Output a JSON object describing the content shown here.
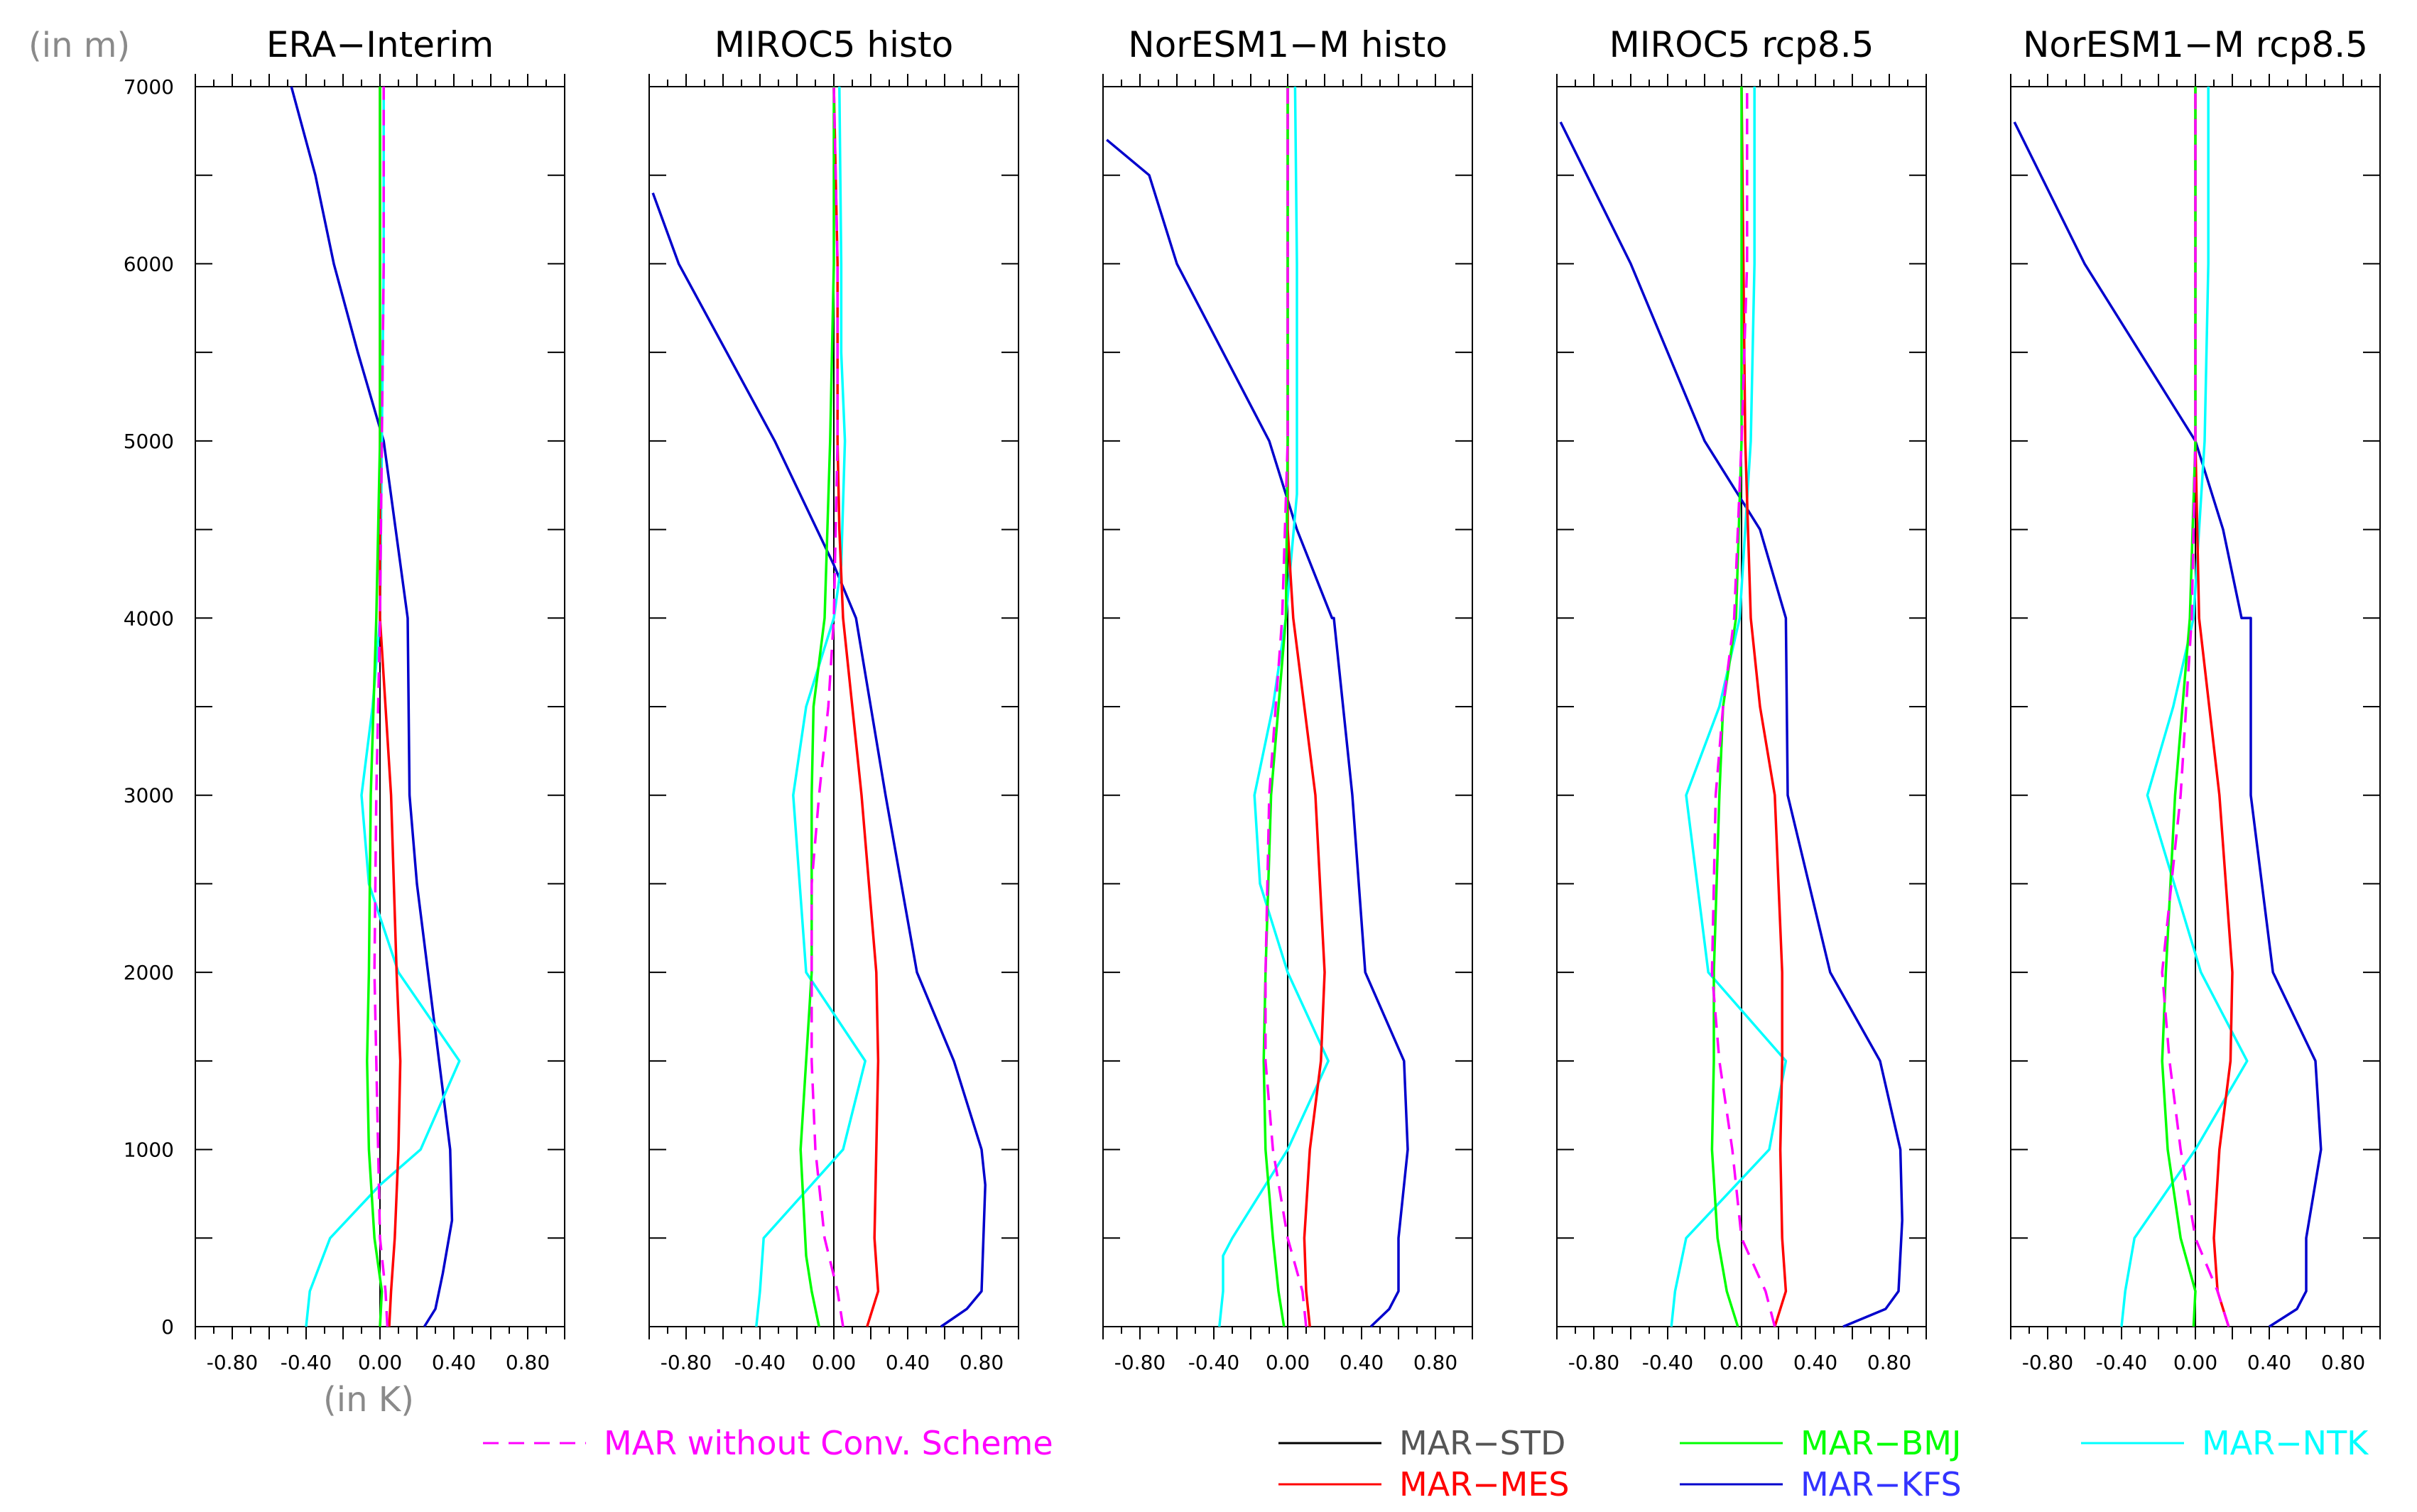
{
  "chart_data": {
    "type": "line",
    "y_unit_label": "(in m)",
    "x_unit_label": "(in K)",
    "ylim": [
      0,
      7000
    ],
    "xlim": [
      -1.0,
      1.0
    ],
    "y_ticks": [
      0,
      1000,
      2000,
      3000,
      4000,
      5000,
      6000,
      7000
    ],
    "y_tick_labels": [
      "0",
      "1000",
      "2000",
      "3000",
      "4000",
      "5000",
      "6000",
      "7000"
    ],
    "x_ticks": [
      -0.8,
      -0.4,
      0.0,
      0.4,
      0.8
    ],
    "x_tick_labels": [
      "-0.80",
      "-0.40",
      "0.00",
      "0.40",
      "0.80"
    ],
    "legend": [
      {
        "key": "nocv",
        "label": "MAR without Conv. Scheme",
        "color": "#ff00ff",
        "dashed": true
      },
      {
        "key": "std",
        "label": "MAR−STD",
        "color": "#000000",
        "text_color": "#555555",
        "dashed": false
      },
      {
        "key": "mes",
        "label": "MAR−MES",
        "color": "#ff0000",
        "dashed": false
      },
      {
        "key": "bmj",
        "label": "MAR−BMJ",
        "color": "#00ff00",
        "dashed": false
      },
      {
        "key": "kfs",
        "label": "MAR−KFS",
        "color": "#0000cc",
        "text_color": "#3333ff",
        "dashed": false
      },
      {
        "key": "ntk",
        "label": "MAR−NTK",
        "color": "#00ffff",
        "dashed": false
      }
    ],
    "panels": [
      {
        "title": "ERA−Interim",
        "series": [
          {
            "key": "std",
            "x": [
              0.0,
              0.0
            ],
            "y": [
              0,
              7000
            ]
          },
          {
            "key": "mes",
            "x": [
              0.05,
              0.06,
              0.08,
              0.1,
              0.11,
              0.09,
              0.06,
              0.0,
              0.0,
              0.0,
              0.0
            ],
            "y": [
              0,
              200,
              500,
              1000,
              1500,
              2000,
              3000,
              4000,
              5000,
              6000,
              7000
            ]
          },
          {
            "key": "nocv",
            "x": [
              0.04,
              0.03,
              0.0,
              -0.01,
              -0.02,
              -0.03,
              -0.02,
              0.0,
              0.01,
              0.02,
              0.02
            ],
            "y": [
              0,
              200,
              500,
              1000,
              1500,
              2000,
              3000,
              4000,
              5000,
              6000,
              7000
            ]
          },
          {
            "key": "bmj",
            "x": [
              0.0,
              0.01,
              -0.03,
              -0.06,
              -0.07,
              -0.06,
              -0.05,
              -0.02,
              0.0,
              0.0,
              0.0
            ],
            "y": [
              0,
              200,
              500,
              1000,
              1500,
              2000,
              3000,
              4000,
              5000,
              6000,
              7000
            ]
          },
          {
            "key": "kfs",
            "x": [
              0.24,
              0.3,
              0.34,
              0.39,
              0.38,
              0.32,
              0.26,
              0.2,
              0.16,
              0.15,
              0.02,
              -0.12,
              -0.25,
              -0.35,
              -0.48
            ],
            "y": [
              0,
              100,
              300,
              600,
              1000,
              1500,
              2000,
              2500,
              3000,
              4000,
              5000,
              5500,
              6000,
              6500,
              7000
            ]
          },
          {
            "key": "ntk",
            "x": [
              -0.4,
              -0.38,
              -0.27,
              0.0,
              0.22,
              0.43,
              0.1,
              -0.06,
              -0.1,
              -0.04,
              0.0,
              0.01,
              0.02,
              0.02
            ],
            "y": [
              0,
              200,
              500,
              800,
              1000,
              1500,
              2000,
              2500,
              3000,
              3500,
              4000,
              5000,
              6000,
              7000
            ]
          }
        ]
      },
      {
        "title": "MIROC5 histo",
        "series": [
          {
            "key": "std",
            "x": [
              0.0,
              0.0
            ],
            "y": [
              0,
              7000
            ]
          },
          {
            "key": "mes",
            "x": [
              0.18,
              0.24,
              0.22,
              0.23,
              0.24,
              0.23,
              0.15,
              0.05,
              0.03,
              0.02,
              0.02,
              0.0
            ],
            "y": [
              0,
              200,
              500,
              1000,
              1500,
              2000,
              3000,
              4000,
              4500,
              5000,
              6000,
              7000
            ]
          },
          {
            "key": "nocv",
            "x": [
              0.05,
              0.02,
              -0.05,
              -0.1,
              -0.12,
              -0.12,
              -0.12,
              -0.08,
              -0.03,
              0.0,
              0.02,
              0.02,
              0.0
            ],
            "y": [
              0,
              200,
              500,
              1000,
              1500,
              2000,
              2500,
              3000,
              3500,
              4000,
              5000,
              6000,
              7000
            ]
          },
          {
            "key": "bmj",
            "x": [
              -0.08,
              -0.12,
              -0.15,
              -0.18,
              -0.15,
              -0.12,
              -0.12,
              -0.11,
              -0.05,
              -0.02,
              0.0,
              0.0
            ],
            "y": [
              0,
              200,
              400,
              1000,
              1500,
              2000,
              3000,
              3500,
              4000,
              5000,
              6000,
              7000
            ]
          },
          {
            "key": "kfs",
            "x": [
              0.58,
              0.72,
              0.8,
              0.81,
              0.82,
              0.8,
              0.65,
              0.45,
              0.28,
              0.2,
              0.12,
              0.0,
              -0.32,
              -0.58,
              -0.84,
              -0.98
            ],
            "y": [
              0,
              100,
              200,
              500,
              800,
              1000,
              1500,
              2000,
              3000,
              3500,
              4000,
              4300,
              5000,
              5500,
              6000,
              6400
            ]
          },
          {
            "key": "ntk",
            "x": [
              -0.42,
              -0.4,
              -0.38,
              0.05,
              0.17,
              -0.15,
              -0.22,
              -0.15,
              0.0,
              0.04,
              0.06,
              0.04,
              0.04,
              0.03
            ],
            "y": [
              0,
              200,
              500,
              1000,
              1500,
              2000,
              3000,
              3500,
              4000,
              4300,
              5000,
              5500,
              6000,
              7000
            ]
          }
        ]
      },
      {
        "title": "NorESM1−M histo",
        "series": [
          {
            "key": "std",
            "x": [
              0.0,
              0.0
            ],
            "y": [
              0,
              7000
            ]
          },
          {
            "key": "mes",
            "x": [
              0.12,
              0.1,
              0.09,
              0.12,
              0.18,
              0.2,
              0.15,
              0.03,
              0.0,
              0.0,
              0.0
            ],
            "y": [
              0,
              200,
              500,
              1000,
              1500,
              2000,
              3000,
              4000,
              4500,
              5000,
              7000
            ]
          },
          {
            "key": "nocv",
            "x": [
              0.1,
              0.08,
              0.0,
              -0.08,
              -0.12,
              -0.12,
              -0.1,
              -0.03,
              0.0,
              0.0,
              0.0
            ],
            "y": [
              0,
              200,
              500,
              1000,
              1500,
              2000,
              3000,
              4000,
              5000,
              6000,
              7000
            ]
          },
          {
            "key": "bmj",
            "x": [
              -0.02,
              -0.05,
              -0.08,
              -0.12,
              -0.13,
              -0.12,
              -0.09,
              -0.01,
              0.0,
              0.0,
              0.0
            ],
            "y": [
              0,
              200,
              500,
              1000,
              1500,
              2000,
              3000,
              4000,
              5000,
              6000,
              7000
            ]
          },
          {
            "key": "kfs",
            "x": [
              0.45,
              0.55,
              0.6,
              0.6,
              0.65,
              0.63,
              0.42,
              0.35,
              0.25,
              0.24,
              0.05,
              -0.1,
              -0.6,
              -0.75,
              -0.98
            ],
            "y": [
              0,
              100,
              200,
              500,
              1000,
              1500,
              2000,
              3000,
              4000,
              4000,
              4500,
              5000,
              6000,
              6500,
              6700
            ]
          },
          {
            "key": "ntk",
            "x": [
              -0.37,
              -0.35,
              -0.35,
              -0.3,
              0.0,
              0.22,
              0.0,
              -0.15,
              -0.18,
              -0.08,
              -0.01,
              0.05,
              0.05,
              0.04
            ],
            "y": [
              0,
              200,
              400,
              500,
              1000,
              1500,
              2000,
              2500,
              3000,
              3500,
              4000,
              4700,
              6000,
              7000
            ]
          }
        ]
      },
      {
        "title": "MIROC5 rcp8.5",
        "series": [
          {
            "key": "std",
            "x": [
              0.0,
              0.0
            ],
            "y": [
              0,
              7000
            ]
          },
          {
            "key": "mes",
            "x": [
              0.18,
              0.24,
              0.22,
              0.21,
              0.22,
              0.22,
              0.18,
              0.1,
              0.05,
              0.02,
              0.01,
              0.0
            ],
            "y": [
              0,
              200,
              500,
              1000,
              1500,
              2000,
              3000,
              3500,
              4000,
              5000,
              6000,
              7000
            ]
          },
          {
            "key": "nocv",
            "x": [
              0.18,
              0.13,
              0.0,
              -0.05,
              -0.12,
              -0.16,
              -0.14,
              -0.1,
              -0.04,
              0.0,
              0.03,
              0.03
            ],
            "y": [
              0,
              200,
              500,
              1000,
              1500,
              2000,
              3000,
              3500,
              4000,
              5000,
              6000,
              7000
            ]
          },
          {
            "key": "bmj",
            "x": [
              -0.02,
              -0.08,
              -0.13,
              -0.16,
              -0.15,
              -0.15,
              -0.12,
              -0.1,
              -0.03,
              0.0,
              0.0
            ],
            "y": [
              0,
              200,
              500,
              1000,
              1500,
              2000,
              3000,
              3500,
              4000,
              5000,
              7000
            ]
          },
          {
            "key": "kfs",
            "x": [
              0.55,
              0.78,
              0.85,
              0.87,
              0.86,
              0.75,
              0.48,
              0.25,
              0.24,
              0.24,
              0.1,
              -0.2,
              -0.6,
              -0.98
            ],
            "y": [
              0,
              100,
              200,
              600,
              1000,
              1500,
              2000,
              3000,
              4000,
              4000,
              4500,
              5000,
              6000,
              6800
            ]
          },
          {
            "key": "ntk",
            "x": [
              -0.38,
              -0.36,
              -0.3,
              0.15,
              0.24,
              -0.18,
              -0.3,
              -0.12,
              -0.01,
              0.05,
              0.07,
              0.07
            ],
            "y": [
              0,
              200,
              500,
              1000,
              1500,
              2000,
              3000,
              3500,
              4000,
              5000,
              6000,
              7000
            ]
          }
        ]
      },
      {
        "title": "NorESM1−M rcp8.5",
        "series": [
          {
            "key": "std",
            "x": [
              0.0,
              0.0
            ],
            "y": [
              0,
              7000
            ]
          },
          {
            "key": "mes",
            "x": [
              0.18,
              0.12,
              0.1,
              0.13,
              0.19,
              0.2,
              0.13,
              0.02,
              0.0,
              0.0,
              0.0
            ],
            "y": [
              0,
              200,
              500,
              1000,
              1500,
              2000,
              3000,
              4000,
              5000,
              6000,
              7000
            ]
          },
          {
            "key": "nocv",
            "x": [
              0.18,
              0.12,
              0.0,
              -0.08,
              -0.14,
              -0.18,
              -0.08,
              -0.02,
              0.0,
              0.0,
              0.0
            ],
            "y": [
              0,
              200,
              500,
              1000,
              1500,
              2000,
              3000,
              4000,
              5000,
              6000,
              7000
            ]
          },
          {
            "key": "bmj",
            "x": [
              -0.01,
              0.0,
              -0.08,
              -0.15,
              -0.18,
              -0.16,
              -0.11,
              -0.03,
              0.0,
              0.0,
              0.0
            ],
            "y": [
              0,
              200,
              500,
              1000,
              1500,
              2000,
              3000,
              4000,
              5000,
              6000,
              7000
            ]
          },
          {
            "key": "kfs",
            "x": [
              0.4,
              0.55,
              0.6,
              0.6,
              0.68,
              0.65,
              0.42,
              0.3,
              0.3,
              0.25,
              0.15,
              0.0,
              -0.6,
              -0.98
            ],
            "y": [
              0,
              100,
              200,
              500,
              1000,
              1500,
              2000,
              3000,
              4000,
              4000,
              4500,
              5000,
              6000,
              6800
            ]
          },
          {
            "key": "ntk",
            "x": [
              -0.4,
              -0.38,
              -0.33,
              0.0,
              0.28,
              0.03,
              -0.26,
              -0.12,
              -0.01,
              0.05,
              0.07,
              0.07
            ],
            "y": [
              0,
              200,
              500,
              1000,
              1500,
              2000,
              3000,
              3500,
              4000,
              5000,
              6000,
              7000
            ]
          }
        ]
      }
    ]
  }
}
